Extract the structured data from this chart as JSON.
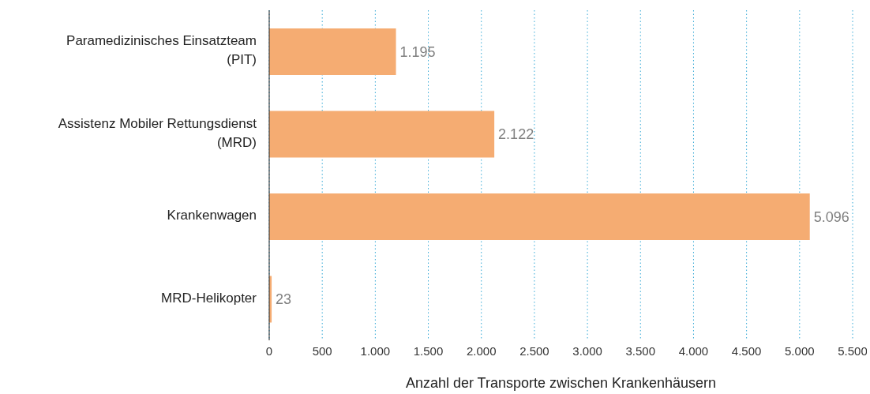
{
  "chart_data": {
    "type": "bar",
    "orientation": "horizontal",
    "xlabel": "Anzahl der Transporte zwischen Krankenhäusern",
    "categories": [
      "Paramedizinisches Einsatzteam (PIT)",
      "Assistenz Mobiler Rettungsdienst (MRD)",
      "Krankenwagen",
      "MRD-Helikopter"
    ],
    "values": [
      1195,
      2122,
      5096,
      23
    ],
    "value_labels": [
      "1.195",
      "2.122",
      "5.096",
      "23"
    ],
    "color": "#f5ac72",
    "xlim": [
      0,
      5500
    ],
    "xticks": [
      0,
      500,
      {
        "value": 1000,
        "label": "1.000"
      },
      {
        "value": 1500,
        "label": "1.500"
      },
      {
        "value": 2000,
        "label": "2.000"
      },
      {
        "value": 2500,
        "label": "2.500"
      },
      {
        "value": 3000,
        "label": "3.000"
      },
      {
        "value": 3500,
        "label": "3.500"
      },
      {
        "value": 4000,
        "label": "4.000"
      },
      {
        "value": 4500,
        "label": "4.500"
      },
      {
        "value": 5000,
        "label": "5.000"
      },
      {
        "value": 5500,
        "label": "5.500"
      }
    ],
    "grid": "x"
  }
}
